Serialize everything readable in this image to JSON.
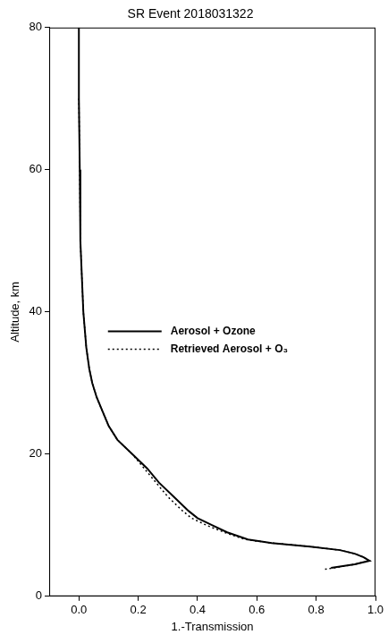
{
  "chart_data": {
    "type": "line",
    "title": "SR Event 2018031322",
    "x_label": "1.-Transmission",
    "y_label": "Altitude, km",
    "xlim": [
      -0.1,
      1.0
    ],
    "xticks": [
      {
        "value": 0,
        "label": "0.0"
      },
      0.2,
      0.4,
      0.6,
      0.8,
      {
        "value": 1,
        "label": "1.0"
      }
    ],
    "ylim": [
      0,
      80
    ],
    "yticks": [
      0,
      20,
      40,
      60,
      80
    ],
    "grid": false,
    "legend": "center",
    "series": [
      {
        "name": "Aerosol + Ozone",
        "color": "#000000",
        "line_style": "solid",
        "y": [
          80,
          70,
          60,
          50,
          45,
          40,
          35,
          32,
          30,
          28,
          26,
          24,
          22,
          20,
          18,
          16,
          14,
          12,
          11,
          10,
          9,
          8,
          7.5,
          7,
          6.5,
          6,
          5.5,
          5,
          4.5,
          4
        ],
        "x": [
          0.0,
          0.0,
          0.003,
          0.005,
          0.01,
          0.015,
          0.025,
          0.035,
          0.045,
          0.06,
          0.08,
          0.1,
          0.13,
          0.18,
          0.23,
          0.27,
          0.32,
          0.37,
          0.4,
          0.45,
          0.5,
          0.57,
          0.65,
          0.78,
          0.88,
          0.93,
          0.96,
          0.98,
          0.93,
          0.85
        ]
      },
      {
        "name": "Retrieved Aerosol + O₃",
        "color": "#000000",
        "line_style": "dotted",
        "y": [
          70,
          60,
          50,
          45,
          40,
          35,
          32,
          30,
          28,
          26,
          24,
          22,
          20,
          18,
          16,
          14,
          12,
          11,
          10,
          9,
          8,
          7.5,
          7,
          6.5,
          6,
          5.5,
          5,
          4.5,
          4,
          3.8
        ],
        "x": [
          0.0,
          0.003,
          0.005,
          0.01,
          0.015,
          0.025,
          0.035,
          0.045,
          0.06,
          0.08,
          0.1,
          0.13,
          0.18,
          0.22,
          0.26,
          0.3,
          0.35,
          0.38,
          0.43,
          0.49,
          0.56,
          0.65,
          0.78,
          0.88,
          0.93,
          0.96,
          0.98,
          0.93,
          0.86,
          0.83
        ]
      }
    ]
  }
}
